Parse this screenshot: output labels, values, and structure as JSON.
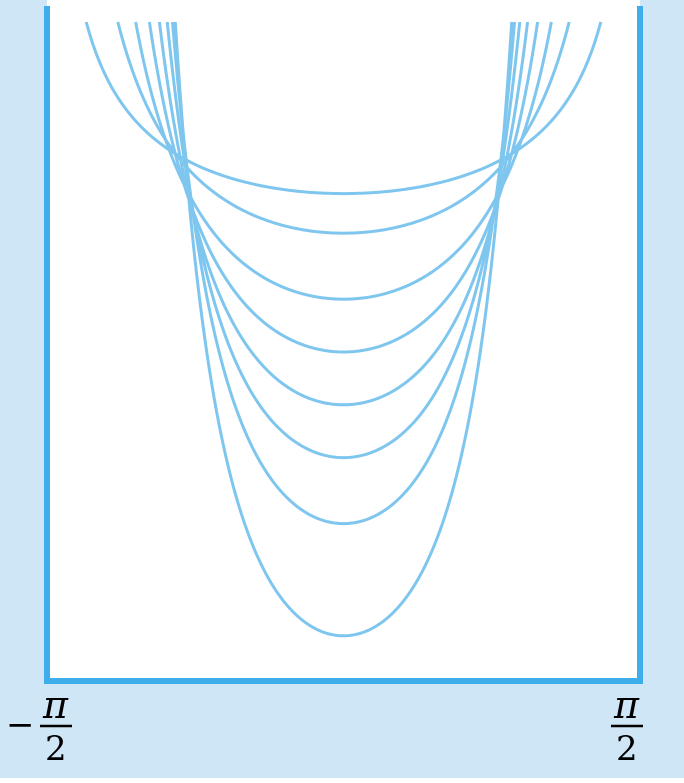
{
  "chart_data": {
    "type": "line",
    "title": "",
    "xlabel": "",
    "ylabel": "",
    "xlim": [
      -1.5708,
      1.5708
    ],
    "x_tick_labels": {
      "left": {
        "sign": "−",
        "numerator": "π",
        "denominator": "2"
      },
      "right": {
        "sign": "",
        "numerator": "π",
        "denominator": "2"
      }
    },
    "curve_params": [
      0.35,
      0.65,
      1.0,
      1.35,
      1.7,
      2.05,
      2.4,
      2.8
    ],
    "curve_relative_depths": [
      0.26,
      0.32,
      0.42,
      0.5,
      0.58,
      0.66,
      0.76,
      0.93
    ],
    "colors": {
      "background_band": "#cfe6f7",
      "wall": "#3daee9",
      "curve": "#7fc6ef",
      "plot_area": "#ffffff"
    }
  }
}
